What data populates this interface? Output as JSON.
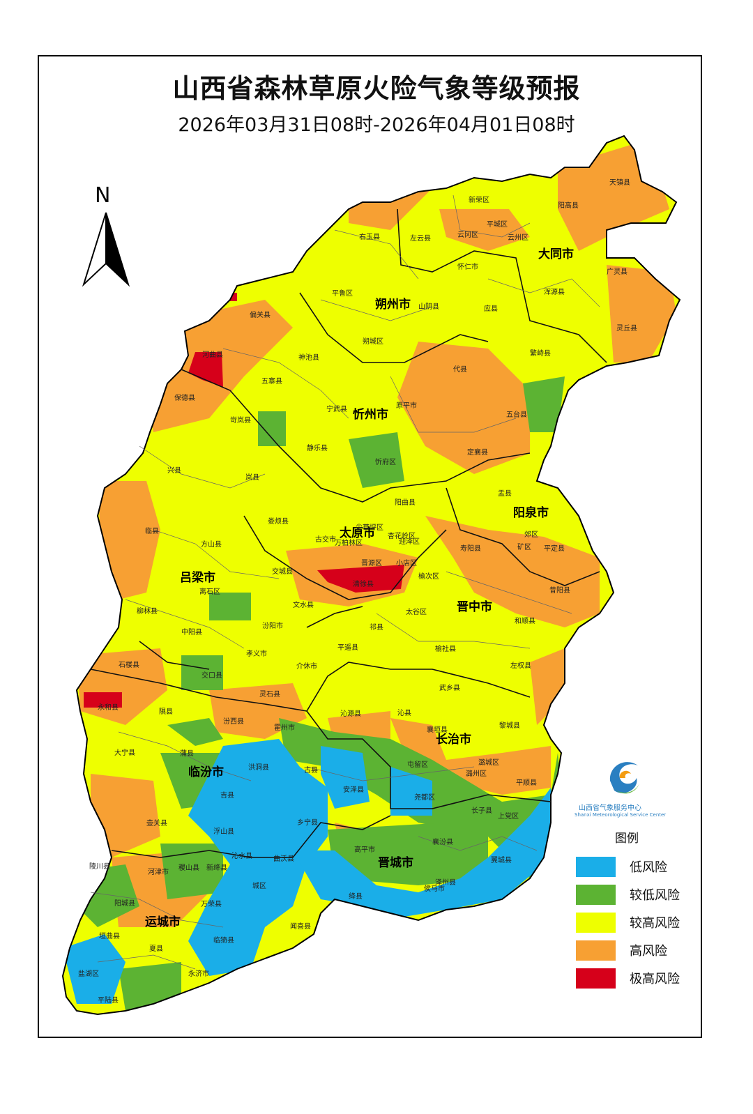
{
  "title": "山西省森林草原火险气象等级预报",
  "subtitle": "2026年03月31日08时-2026年04月01日08时",
  "north_label": "N",
  "legend": {
    "title": "图例",
    "items": [
      {
        "label": "低风险",
        "color": "#1aaee8"
      },
      {
        "label": "较低风险",
        "color": "#5cb333"
      },
      {
        "label": "较高风险",
        "color": "#eeff00"
      },
      {
        "label": "高风险",
        "color": "#f7a033"
      },
      {
        "label": "极高风险",
        "color": "#d6001a"
      }
    ]
  },
  "logo": {
    "name_cn": "山西省气象服务中心",
    "name_en": "Shanxi Meteorological Service Center"
  },
  "cities": [
    "大同市",
    "朔州市",
    "忻州市",
    "阳泉市",
    "太原市",
    "吕梁市",
    "晋中市",
    "长治市",
    "临汾市",
    "晋城市",
    "运城市"
  ],
  "counties": [
    "天镇县",
    "新荣区",
    "阳高县",
    "左云县",
    "平城区",
    "右玉县",
    "云冈区",
    "云州区",
    "怀仁市",
    "广灵县",
    "平鲁区",
    "山阴县",
    "应县",
    "浑源县",
    "偏关县",
    "灵丘县",
    "朔城区",
    "繁峙县",
    "河曲县",
    "神池县",
    "代县",
    "五寨县",
    "保德县",
    "宁武县",
    "原平市",
    "五台县",
    "岢岚县",
    "静乐县",
    "忻府区",
    "定襄县",
    "兴县",
    "岚县",
    "盂县",
    "阳曲县",
    "尖草坪区",
    "娄烦县",
    "古交市",
    "万柏林区",
    "杏花岭区",
    "迎泽区",
    "郊区",
    "矿区",
    "平定县",
    "临县",
    "方山县",
    "寿阳县",
    "晋源区",
    "小店区",
    "交城县",
    "清徐县",
    "榆次区",
    "离石区",
    "文水县",
    "昔阳县",
    "柳林县",
    "太谷区",
    "中阳县",
    "汾阳市",
    "和顺县",
    "祁县",
    "孝义市",
    "平遥县",
    "榆社县",
    "石楼县",
    "介休市",
    "左权县",
    "交口县",
    "武乡县",
    "灵石县",
    "永和县",
    "隰县",
    "沁源县",
    "沁县",
    "汾西县",
    "霍州市",
    "襄垣县",
    "黎城县",
    "大宁县",
    "蒲县",
    "屯留区",
    "潞城区",
    "洪洞县",
    "古县",
    "安泽县",
    "平顺县",
    "潞州区",
    "吉县",
    "尧都区",
    "长子县",
    "上党区",
    "壶关县",
    "乡宁县",
    "浮山县",
    "襄汾县",
    "高平市",
    "沁水县",
    "曲沃县",
    "翼城县",
    "陵川县",
    "河津市",
    "稷山县",
    "新绛县",
    "侯马市",
    "泽州县",
    "城区",
    "绛县",
    "阳城县",
    "万荣县",
    "闻喜县",
    "垣曲县",
    "临猗县",
    "夏县",
    "盐湖区",
    "永济市",
    "平陆县",
    "芮城县"
  ]
}
